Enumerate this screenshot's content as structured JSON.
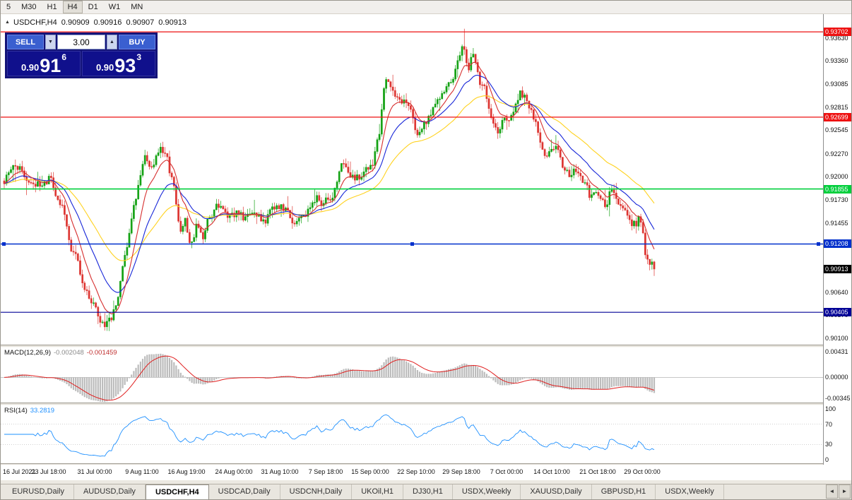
{
  "toolbar": {
    "timeframes": [
      "5",
      "M30",
      "H1",
      "H4",
      "D1",
      "W1",
      "MN"
    ],
    "active": "H4"
  },
  "chart_header": {
    "symbol": "USDCHF,H4",
    "open": "0.90909",
    "high": "0.90916",
    "low": "0.90907",
    "close": "0.90913"
  },
  "trade_panel": {
    "sell_label": "SELL",
    "buy_label": "BUY",
    "volume": "3.00",
    "spin_down": "▼",
    "spin_up": "▲",
    "sell": {
      "small": "0.90",
      "big": "91",
      "sup": "6"
    },
    "buy": {
      "small": "0.90",
      "big": "93",
      "sup": "3"
    }
  },
  "price_axis": {
    "ticks": [
      "0.93630",
      "0.93360",
      "0.93085",
      "0.92815",
      "0.92545",
      "0.92270",
      "0.92000",
      "0.91730",
      "0.91455",
      "0.91185",
      "0.90910",
      "0.90640",
      "0.90370",
      "0.90100"
    ]
  },
  "hlines": [
    {
      "price": 0.93702,
      "label": "0.93702",
      "color": "#ee1111",
      "width": 1.2,
      "selected": false
    },
    {
      "price": 0.92699,
      "label": "0.92699",
      "color": "#ee1111",
      "width": 1.2,
      "selected": false
    },
    {
      "price": 0.91855,
      "label": "0.91855",
      "color": "#00cf3c",
      "width": 1.6,
      "selected": false
    },
    {
      "price": 0.91208,
      "label": "0.91208",
      "color": "#0030cc",
      "width": 1.6,
      "selected": true
    },
    {
      "price": 0.90405,
      "label": "0.90405",
      "color": "#000096",
      "width": 1.2,
      "selected": false
    }
  ],
  "current_price": {
    "label": "0.90913",
    "value": 0.90913,
    "box_color": "#000000"
  },
  "macd_panel": {
    "title": "MACD(12,26,9)",
    "value_main": "-0.002048",
    "value_signal": "-0.001459",
    "scale_max": 0.0041,
    "histogram_color": "#bcbcbc",
    "signal_color": "#e02020",
    "ticks": [
      {
        "label": "0.00431",
        "v": 0.00431
      },
      {
        "label": "0.00000",
        "v": 0
      },
      {
        "label": "-0.00345",
        "v": -0.00345
      }
    ]
  },
  "rsi_panel": {
    "title": "RSI(14)",
    "value": "33.2819",
    "line_color": "#1e90ff",
    "levels": [
      70,
      30
    ],
    "ticks": [
      {
        "label": "100",
        "v": 100
      },
      {
        "label": "70",
        "v": 70
      },
      {
        "label": "30",
        "v": 30
      },
      {
        "label": "0",
        "v": 0
      }
    ]
  },
  "time_axis": {
    "labels": [
      {
        "t": "16 Jul 2021",
        "x": 0.0
      },
      {
        "t": "23 Jul 18:00",
        "x": 0.068
      },
      {
        "t": "31 Jul 00:00",
        "x": 0.139
      },
      {
        "t": "9 Aug 11:00",
        "x": 0.212
      },
      {
        "t": "16 Aug 19:00",
        "x": 0.28
      },
      {
        "t": "24 Aug 00:00",
        "x": 0.353
      },
      {
        "t": "31 Aug 10:00",
        "x": 0.424
      },
      {
        "t": "7 Sep 18:00",
        "x": 0.495
      },
      {
        "t": "15 Sep 00:00",
        "x": 0.563
      },
      {
        "t": "22 Sep 10:00",
        "x": 0.634
      },
      {
        "t": "29 Sep 18:00",
        "x": 0.703
      },
      {
        "t": "7 Oct 00:00",
        "x": 0.773
      },
      {
        "t": "14 Oct 10:00",
        "x": 0.842
      },
      {
        "t": "21 Oct 18:00",
        "x": 0.913
      },
      {
        "t": "29 Oct 00:00",
        "x": 0.982
      }
    ]
  },
  "tabs": {
    "items": [
      "EURUSD,Daily",
      "AUDUSD,Daily",
      "USDCHF,H4",
      "USDCAD,Daily",
      "USDCNH,Daily",
      "UKOil,H1",
      "DJ30,H1",
      "USDX,Weekly",
      "XAUUSD,Daily",
      "GBPUSD,H1",
      "USDX,Weekly"
    ],
    "active_index": 2,
    "scroll_left": "◄",
    "scroll_right": "►"
  },
  "chart_data": {
    "type": "candlestick",
    "symbol": "USDCHF",
    "timeframe": "H4",
    "seed": 13,
    "candle_count": 292,
    "noise": 0.0013,
    "price_min": 0.90025,
    "price_max": 0.9391,
    "last_close": 0.90913,
    "extreme_high": {
      "x": 0.707,
      "price": 0.93738
    },
    "extreme_low": {
      "x": 0.163,
      "price": 0.90185
    },
    "colors": {
      "up": "#15a215",
      "down": "#dd3632",
      "ma_fast": "#d62f2f",
      "ma_mid": "#1726d8",
      "ma_slow": "#ffd21f"
    },
    "ma_periods": {
      "fast": 9,
      "mid": 21,
      "slow": 45
    },
    "price_path": [
      [
        0.0,
        0.9195
      ],
      [
        0.013,
        0.9206
      ],
      [
        0.028,
        0.9212
      ],
      [
        0.042,
        0.9188
      ],
      [
        0.056,
        0.9193
      ],
      [
        0.07,
        0.9198
      ],
      [
        0.082,
        0.9178
      ],
      [
        0.094,
        0.9152
      ],
      [
        0.106,
        0.9112
      ],
      [
        0.118,
        0.9085
      ],
      [
        0.131,
        0.906
      ],
      [
        0.143,
        0.9044
      ],
      [
        0.152,
        0.9033
      ],
      [
        0.163,
        0.9028
      ],
      [
        0.172,
        0.9048
      ],
      [
        0.183,
        0.9092
      ],
      [
        0.194,
        0.9138
      ],
      [
        0.205,
        0.9186
      ],
      [
        0.216,
        0.9222
      ],
      [
        0.226,
        0.921
      ],
      [
        0.237,
        0.9232
      ],
      [
        0.25,
        0.923
      ],
      [
        0.26,
        0.9188
      ],
      [
        0.27,
        0.9142
      ],
      [
        0.278,
        0.915
      ],
      [
        0.287,
        0.9123
      ],
      [
        0.296,
        0.9146
      ],
      [
        0.306,
        0.9134
      ],
      [
        0.317,
        0.9159
      ],
      [
        0.33,
        0.9165
      ],
      [
        0.344,
        0.9151
      ],
      [
        0.358,
        0.9161
      ],
      [
        0.372,
        0.9152
      ],
      [
        0.386,
        0.9163
      ],
      [
        0.4,
        0.915
      ],
      [
        0.413,
        0.9159
      ],
      [
        0.427,
        0.9171
      ],
      [
        0.441,
        0.9152
      ],
      [
        0.455,
        0.9144
      ],
      [
        0.468,
        0.9157
      ],
      [
        0.481,
        0.917
      ],
      [
        0.494,
        0.9167
      ],
      [
        0.507,
        0.9187
      ],
      [
        0.519,
        0.9216
      ],
      [
        0.531,
        0.9207
      ],
      [
        0.544,
        0.9199
      ],
      [
        0.556,
        0.9206
      ],
      [
        0.567,
        0.9216
      ],
      [
        0.577,
        0.9252
      ],
      [
        0.587,
        0.9318
      ],
      [
        0.596,
        0.9298
      ],
      [
        0.606,
        0.9283
      ],
      [
        0.615,
        0.9291
      ],
      [
        0.624,
        0.9271
      ],
      [
        0.635,
        0.9254
      ],
      [
        0.646,
        0.9258
      ],
      [
        0.657,
        0.9275
      ],
      [
        0.667,
        0.9298
      ],
      [
        0.678,
        0.9294
      ],
      [
        0.689,
        0.9308
      ],
      [
        0.699,
        0.933
      ],
      [
        0.707,
        0.9356
      ],
      [
        0.714,
        0.9327
      ],
      [
        0.721,
        0.9343
      ],
      [
        0.728,
        0.9316
      ],
      [
        0.739,
        0.9299
      ],
      [
        0.75,
        0.9267
      ],
      [
        0.76,
        0.9256
      ],
      [
        0.771,
        0.9269
      ],
      [
        0.782,
        0.9277
      ],
      [
        0.792,
        0.9302
      ],
      [
        0.803,
        0.929
      ],
      [
        0.814,
        0.9273
      ],
      [
        0.825,
        0.9242
      ],
      [
        0.836,
        0.9224
      ],
      [
        0.847,
        0.9237
      ],
      [
        0.858,
        0.9217
      ],
      [
        0.869,
        0.9204
      ],
      [
        0.879,
        0.9213
      ],
      [
        0.89,
        0.9192
      ],
      [
        0.901,
        0.9175
      ],
      [
        0.912,
        0.9184
      ],
      [
        0.923,
        0.9167
      ],
      [
        0.934,
        0.9186
      ],
      [
        0.945,
        0.9171
      ],
      [
        0.956,
        0.9159
      ],
      [
        0.966,
        0.9134
      ],
      [
        0.977,
        0.915
      ],
      [
        0.988,
        0.9102
      ],
      [
        1.0,
        0.9091
      ]
    ]
  }
}
